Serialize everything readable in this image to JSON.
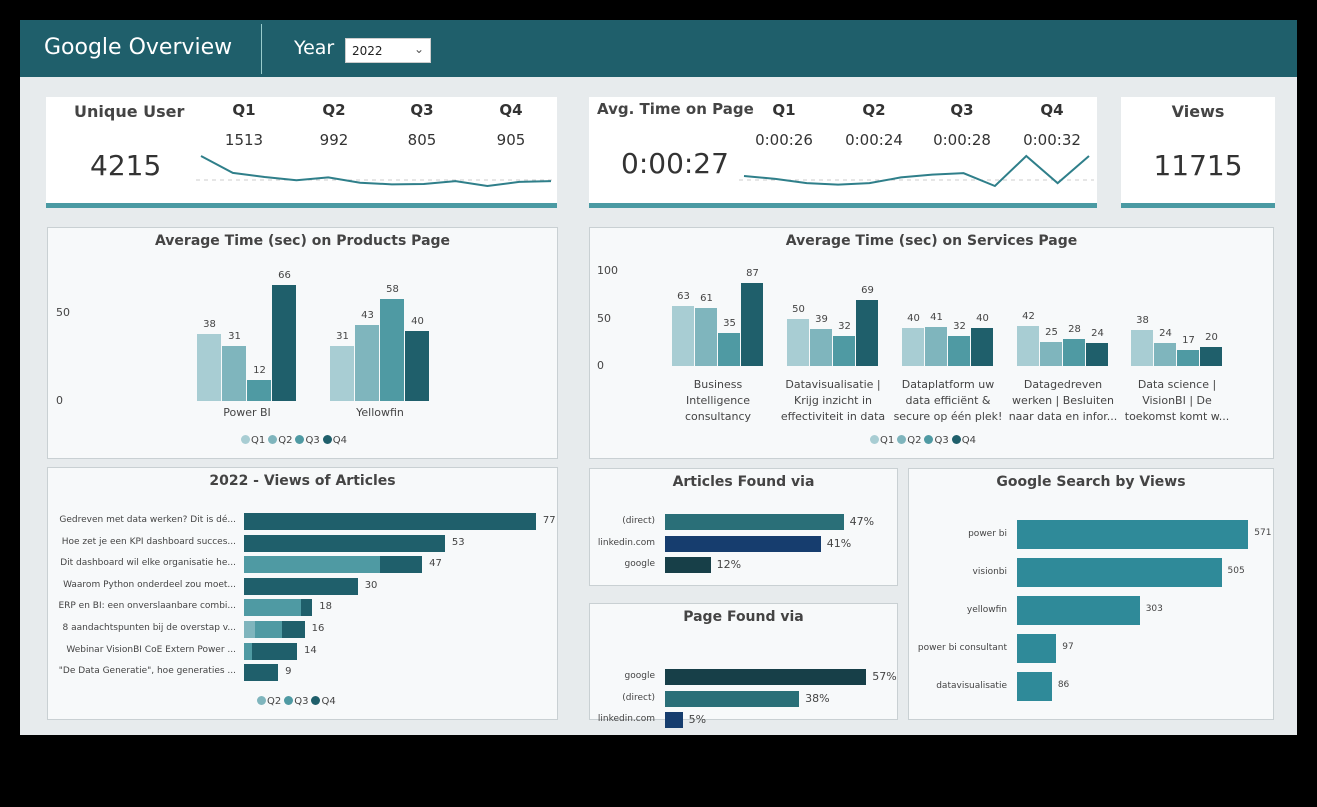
{
  "header": {
    "title": "Google Overview",
    "year_label": "Year",
    "year_value": "2022",
    "icons": {
      "dropdown": "chevron-down-icon"
    }
  },
  "colors": {
    "header": "#1f5f6b",
    "Q1": "#a8cdd3",
    "Q2": "#7fb5bd",
    "Q3": "#4f9aa3",
    "Q4": "#1f5f6b",
    "direct": "#2a6f78",
    "linkedin": "#163d6e",
    "google": "#173f48",
    "search": "#2f8a99"
  },
  "kpi_users": {
    "label": "Unique User",
    "value": "4215",
    "quarters": [
      {
        "q": "Q1",
        "v": "1513"
      },
      {
        "q": "Q2",
        "v": "992"
      },
      {
        "q": "Q3",
        "v": "805"
      },
      {
        "q": "Q4",
        "v": "905"
      }
    ],
    "spark": [
      1513,
      1100,
      1000,
      920,
      990,
      860,
      820,
      830,
      900,
      780,
      880,
      900
    ]
  },
  "kpi_time": {
    "label": "Avg. Time on Page",
    "value": "0:00:27",
    "quarters": [
      {
        "q": "Q1",
        "v": "0:00:26"
      },
      {
        "q": "Q2",
        "v": "0:00:24"
      },
      {
        "q": "Q3",
        "v": "0:00:28"
      },
      {
        "q": "Q4",
        "v": "0:00:32"
      }
    ],
    "spark": [
      26,
      25,
      23.5,
      23,
      23.5,
      25.5,
      26.5,
      27,
      22.5,
      33,
      23.5,
      33
    ]
  },
  "kpi_views": {
    "label": "Views",
    "value": "11715"
  },
  "chart_data": [
    {
      "type": "bar",
      "title": "Average Time (sec) on Products Page",
      "categories": [
        "Power BI",
        "Yellowfin"
      ],
      "yticks": [
        "0",
        "50"
      ],
      "ylim": [
        0,
        75
      ],
      "series": [
        {
          "name": "Q1",
          "values": [
            38,
            31
          ]
        },
        {
          "name": "Q2",
          "values": [
            31,
            43
          ]
        },
        {
          "name": "Q3",
          "values": [
            12,
            58
          ]
        },
        {
          "name": "Q4",
          "values": [
            66,
            40
          ]
        }
      ],
      "legend": "bottom"
    },
    {
      "type": "bar",
      "title": "Average Time (sec) on Services Page",
      "categories": [
        "Business Intelligence consultancy",
        "Datavisualisatie | Krijg inzicht in effectiviteit in data",
        "Dataplatform uw data efficiënt & secure op één plek!",
        "Datagedreven werken | Besluiten naar data en infor...",
        "Data science | VisionBI | De toekomst komt w..."
      ],
      "category_lines": [
        [
          "Business",
          "Intelligence",
          "consultancy"
        ],
        [
          "Datavisualisatie |",
          "Krijg inzicht in",
          "effectiviteit in data"
        ],
        [
          "Dataplatform uw",
          "data efficiënt &",
          "secure op één plek!"
        ],
        [
          "Datagedreven",
          "werken | Besluiten",
          "naar data en infor..."
        ],
        [
          "Data science |",
          "VisionBI | De",
          "toekomst komt w..."
        ]
      ],
      "yticks": [
        "0",
        "50",
        "100"
      ],
      "ylim": [
        0,
        100
      ],
      "series": [
        {
          "name": "Q1",
          "values": [
            63,
            50,
            40,
            42,
            38
          ]
        },
        {
          "name": "Q2",
          "values": [
            61,
            39,
            41,
            25,
            24
          ]
        },
        {
          "name": "Q3",
          "values": [
            35,
            32,
            32,
            28,
            17
          ]
        },
        {
          "name": "Q4",
          "values": [
            87,
            69,
            40,
            24,
            20
          ]
        }
      ],
      "legend": "bottom"
    },
    {
      "type": "bar",
      "orientation": "horizontal",
      "stacked": true,
      "title": "2022 - Views of Articles",
      "categories": [
        "Gedreven met data werken? Dit is dé...",
        "Hoe zet je een KPI dashboard succes...",
        "Dit dashboard wil elke organisatie he...",
        "Waarom Python onderdeel zou moet...",
        "ERP en BI: een onverslaanbare combi...",
        "8 aandachtspunten bij de overstap v...",
        "Webinar VisionBI CoE Extern Power ...",
        "\"De Data Generatie\", hoe generaties ..."
      ],
      "totals": [
        "77",
        "53",
        "47",
        "30",
        "18",
        "16",
        "14",
        "9"
      ],
      "series": [
        {
          "name": "Q2",
          "values": [
            0,
            0,
            0,
            0,
            0,
            3,
            0,
            0
          ]
        },
        {
          "name": "Q3",
          "values": [
            0,
            0,
            36,
            0,
            15,
            7,
            2,
            0
          ]
        },
        {
          "name": "Q4",
          "values": [
            77,
            53,
            11,
            30,
            3,
            6,
            12,
            9
          ]
        }
      ],
      "legend": "bottom"
    },
    {
      "type": "bar",
      "orientation": "horizontal",
      "title": "Articles Found via",
      "categories": [
        "(direct)",
        "linkedin.com",
        "google"
      ],
      "values": [
        47,
        41,
        12
      ],
      "labels": [
        "47%",
        "41%",
        "12%"
      ]
    },
    {
      "type": "bar",
      "orientation": "horizontal",
      "title": "Page Found via",
      "categories": [
        "google",
        "(direct)",
        "linkedin.com"
      ],
      "values": [
        57,
        38,
        5
      ],
      "labels": [
        "57%",
        "38%",
        "5%"
      ]
    },
    {
      "type": "bar",
      "orientation": "horizontal",
      "title": "Google Search by Views",
      "categories": [
        "power bi",
        "visionbi",
        "yellowfin",
        "power bi consultant",
        "datavisualisatie"
      ],
      "values": [
        571,
        505,
        303,
        97,
        86
      ],
      "labels": [
        "571",
        "505",
        "303",
        "97",
        "86"
      ]
    }
  ]
}
